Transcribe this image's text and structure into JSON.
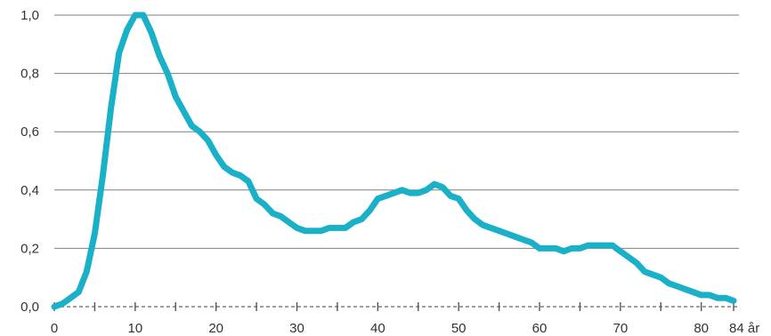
{
  "chart_data": {
    "type": "line",
    "title": "",
    "xlabel": "",
    "ylabel": "",
    "xlim": [
      0,
      84
    ],
    "ylim": [
      0,
      1.0
    ],
    "x_ticks": [
      0,
      10,
      20,
      30,
      40,
      50,
      60,
      70,
      80,
      84
    ],
    "x_tick_labels": [
      "0",
      "10",
      "20",
      "30",
      "40",
      "50",
      "60",
      "70",
      "80",
      "84 år"
    ],
    "y_ticks": [
      0,
      0.2,
      0.4,
      0.6,
      0.8,
      1.0
    ],
    "y_tick_labels": [
      "0,0",
      "0,2",
      "0,4",
      "0,6",
      "0,8",
      "1,0"
    ],
    "grid": "horizontal",
    "series_color": "#1ab0c8",
    "series": [
      {
        "name": "",
        "x": [
          0,
          1,
          2,
          3,
          4,
          5,
          6,
          7,
          8,
          9,
          10,
          11,
          12,
          13,
          14,
          15,
          16,
          17,
          18,
          19,
          20,
          21,
          22,
          23,
          24,
          25,
          26,
          27,
          28,
          29,
          30,
          31,
          32,
          33,
          34,
          35,
          36,
          37,
          38,
          39,
          40,
          41,
          42,
          43,
          44,
          45,
          46,
          47,
          48,
          49,
          50,
          51,
          52,
          53,
          54,
          55,
          56,
          57,
          58,
          59,
          60,
          61,
          62,
          63,
          64,
          65,
          66,
          67,
          68,
          69,
          70,
          71,
          72,
          73,
          74,
          75,
          76,
          77,
          78,
          79,
          80,
          81,
          82,
          83,
          84
        ],
        "values": [
          0.0,
          0.01,
          0.03,
          0.05,
          0.12,
          0.25,
          0.45,
          0.68,
          0.87,
          0.95,
          1.0,
          1.0,
          0.94,
          0.86,
          0.8,
          0.72,
          0.67,
          0.62,
          0.6,
          0.57,
          0.52,
          0.48,
          0.46,
          0.45,
          0.43,
          0.37,
          0.35,
          0.32,
          0.31,
          0.29,
          0.27,
          0.26,
          0.26,
          0.26,
          0.27,
          0.27,
          0.27,
          0.29,
          0.3,
          0.33,
          0.37,
          0.38,
          0.39,
          0.4,
          0.39,
          0.39,
          0.4,
          0.42,
          0.41,
          0.38,
          0.37,
          0.33,
          0.3,
          0.28,
          0.27,
          0.26,
          0.25,
          0.24,
          0.23,
          0.22,
          0.2,
          0.2,
          0.2,
          0.19,
          0.2,
          0.2,
          0.21,
          0.21,
          0.21,
          0.21,
          0.19,
          0.17,
          0.15,
          0.12,
          0.11,
          0.1,
          0.08,
          0.07,
          0.06,
          0.05,
          0.04,
          0.04,
          0.03,
          0.03,
          0.02
        ]
      }
    ]
  }
}
